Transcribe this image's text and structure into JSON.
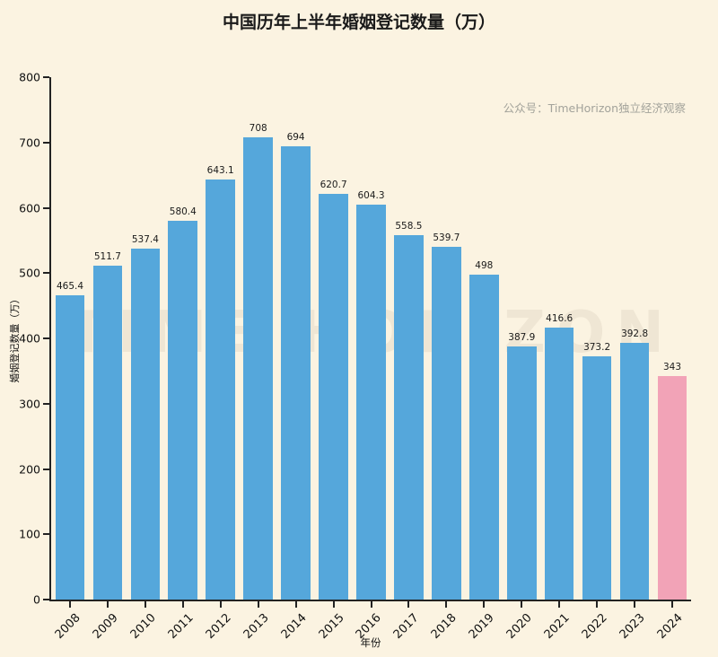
{
  "page": {
    "note": "公众号：TimeHorizon独立经济观察",
    "watermark": "TIME HORIZON",
    "background": "#FBF3E1"
  },
  "chart_data": {
    "type": "bar",
    "title": "中国历年上半年婚姻登记数量（万）",
    "xlabel": "年份",
    "ylabel": "婚姻登记数量（万）",
    "ylim": [
      0,
      800
    ],
    "yticks": [
      0,
      100,
      200,
      300,
      400,
      500,
      600,
      700,
      800
    ],
    "grid": false,
    "legend": false,
    "categories": [
      "2008",
      "2009",
      "2010",
      "2011",
      "2012",
      "2013",
      "2014",
      "2015",
      "2016",
      "2017",
      "2018",
      "2019",
      "2020",
      "2021",
      "2022",
      "2023",
      "2024"
    ],
    "values": [
      465.4,
      511.7,
      537.4,
      580.4,
      643.1,
      708,
      694,
      620.7,
      604.3,
      558.5,
      539.7,
      498,
      387.9,
      416.6,
      373.2,
      392.8,
      343
    ],
    "value_labels": [
      "465.4",
      "511.7",
      "537.4",
      "580.4",
      "643.1",
      "708",
      "694",
      "620.7",
      "604.3",
      "558.5",
      "539.7",
      "498",
      "387.9",
      "416.6",
      "373.2",
      "392.8",
      "343"
    ],
    "bar_color": "#55A7DB",
    "highlight_color": "#F2A3B7",
    "highlight_index": 16
  }
}
